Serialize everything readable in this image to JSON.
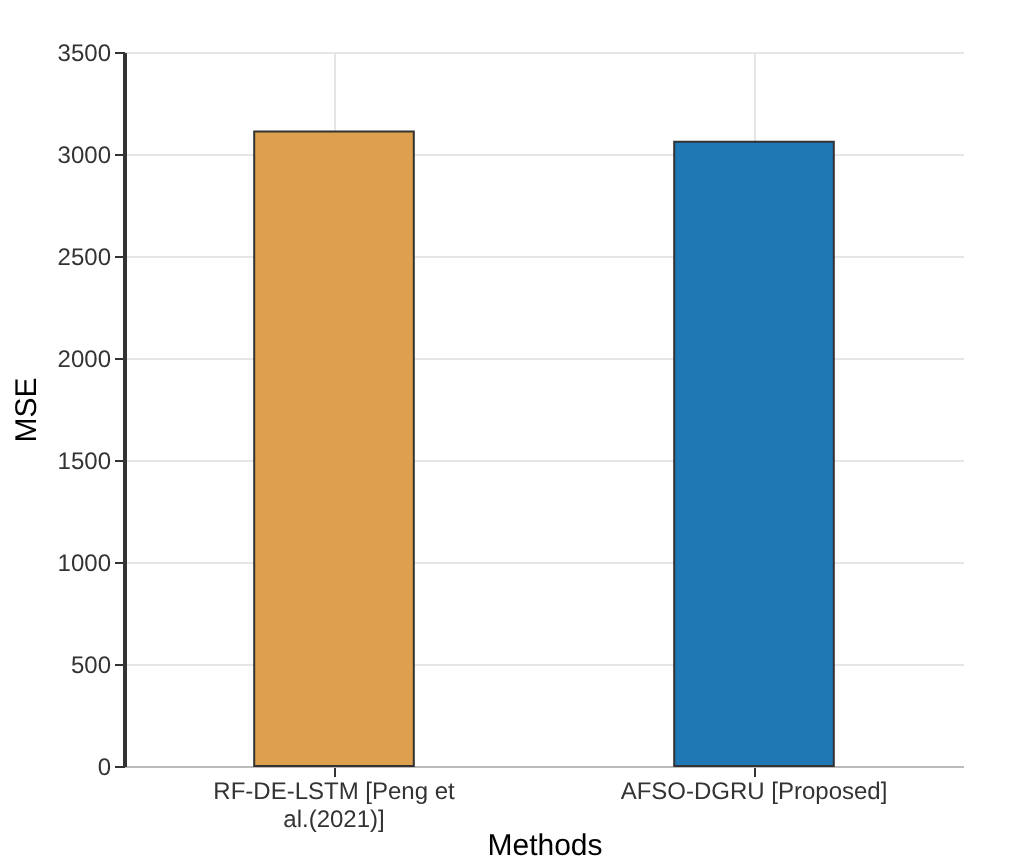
{
  "chart_data": {
    "type": "bar",
    "xlabel": "Methods",
    "ylabel": "MSE",
    "categories": [
      "RF-DE-LSTM [Peng et al.(2021)]",
      "AFSO-DGRU [Proposed]"
    ],
    "values": [
      3110,
      3060
    ],
    "colors": [
      "#dda04e",
      "#1f77b4"
    ],
    "ylim": [
      0,
      3500
    ],
    "yticks": [
      0,
      500,
      1000,
      1500,
      2000,
      2500,
      3000,
      3500
    ],
    "grid": true,
    "legend": false
  }
}
